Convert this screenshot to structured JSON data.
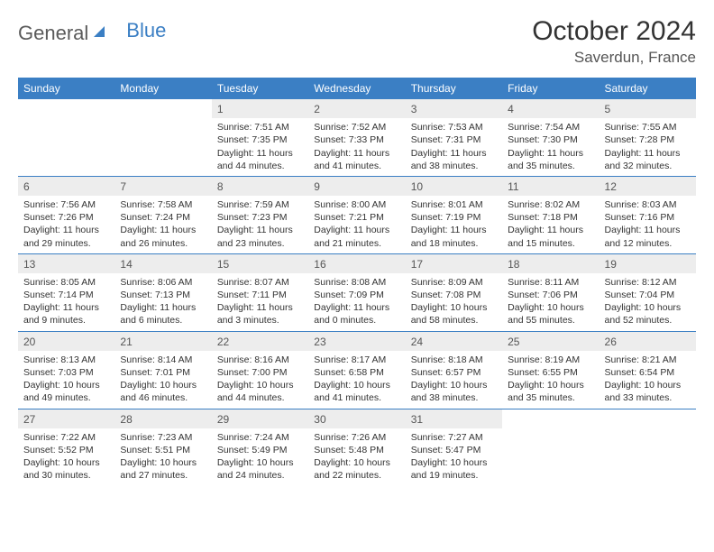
{
  "logo": {
    "text1": "General",
    "text2": "Blue"
  },
  "title": "October 2024",
  "location": "Saverdun, France",
  "colors": {
    "header_bg": "#3b7fc4",
    "header_text": "#ffffff",
    "daynum_bg": "#ededed",
    "border": "#3b7fc4",
    "text": "#333333",
    "logo_gray": "#5a5a5a"
  },
  "weekdays": [
    "Sunday",
    "Monday",
    "Tuesday",
    "Wednesday",
    "Thursday",
    "Friday",
    "Saturday"
  ],
  "weeks": [
    [
      null,
      null,
      {
        "n": "1",
        "sr": "Sunrise: 7:51 AM",
        "ss": "Sunset: 7:35 PM",
        "dl": "Daylight: 11 hours and 44 minutes."
      },
      {
        "n": "2",
        "sr": "Sunrise: 7:52 AM",
        "ss": "Sunset: 7:33 PM",
        "dl": "Daylight: 11 hours and 41 minutes."
      },
      {
        "n": "3",
        "sr": "Sunrise: 7:53 AM",
        "ss": "Sunset: 7:31 PM",
        "dl": "Daylight: 11 hours and 38 minutes."
      },
      {
        "n": "4",
        "sr": "Sunrise: 7:54 AM",
        "ss": "Sunset: 7:30 PM",
        "dl": "Daylight: 11 hours and 35 minutes."
      },
      {
        "n": "5",
        "sr": "Sunrise: 7:55 AM",
        "ss": "Sunset: 7:28 PM",
        "dl": "Daylight: 11 hours and 32 minutes."
      }
    ],
    [
      {
        "n": "6",
        "sr": "Sunrise: 7:56 AM",
        "ss": "Sunset: 7:26 PM",
        "dl": "Daylight: 11 hours and 29 minutes."
      },
      {
        "n": "7",
        "sr": "Sunrise: 7:58 AM",
        "ss": "Sunset: 7:24 PM",
        "dl": "Daylight: 11 hours and 26 minutes."
      },
      {
        "n": "8",
        "sr": "Sunrise: 7:59 AM",
        "ss": "Sunset: 7:23 PM",
        "dl": "Daylight: 11 hours and 23 minutes."
      },
      {
        "n": "9",
        "sr": "Sunrise: 8:00 AM",
        "ss": "Sunset: 7:21 PM",
        "dl": "Daylight: 11 hours and 21 minutes."
      },
      {
        "n": "10",
        "sr": "Sunrise: 8:01 AM",
        "ss": "Sunset: 7:19 PM",
        "dl": "Daylight: 11 hours and 18 minutes."
      },
      {
        "n": "11",
        "sr": "Sunrise: 8:02 AM",
        "ss": "Sunset: 7:18 PM",
        "dl": "Daylight: 11 hours and 15 minutes."
      },
      {
        "n": "12",
        "sr": "Sunrise: 8:03 AM",
        "ss": "Sunset: 7:16 PM",
        "dl": "Daylight: 11 hours and 12 minutes."
      }
    ],
    [
      {
        "n": "13",
        "sr": "Sunrise: 8:05 AM",
        "ss": "Sunset: 7:14 PM",
        "dl": "Daylight: 11 hours and 9 minutes."
      },
      {
        "n": "14",
        "sr": "Sunrise: 8:06 AM",
        "ss": "Sunset: 7:13 PM",
        "dl": "Daylight: 11 hours and 6 minutes."
      },
      {
        "n": "15",
        "sr": "Sunrise: 8:07 AM",
        "ss": "Sunset: 7:11 PM",
        "dl": "Daylight: 11 hours and 3 minutes."
      },
      {
        "n": "16",
        "sr": "Sunrise: 8:08 AM",
        "ss": "Sunset: 7:09 PM",
        "dl": "Daylight: 11 hours and 0 minutes."
      },
      {
        "n": "17",
        "sr": "Sunrise: 8:09 AM",
        "ss": "Sunset: 7:08 PM",
        "dl": "Daylight: 10 hours and 58 minutes."
      },
      {
        "n": "18",
        "sr": "Sunrise: 8:11 AM",
        "ss": "Sunset: 7:06 PM",
        "dl": "Daylight: 10 hours and 55 minutes."
      },
      {
        "n": "19",
        "sr": "Sunrise: 8:12 AM",
        "ss": "Sunset: 7:04 PM",
        "dl": "Daylight: 10 hours and 52 minutes."
      }
    ],
    [
      {
        "n": "20",
        "sr": "Sunrise: 8:13 AM",
        "ss": "Sunset: 7:03 PM",
        "dl": "Daylight: 10 hours and 49 minutes."
      },
      {
        "n": "21",
        "sr": "Sunrise: 8:14 AM",
        "ss": "Sunset: 7:01 PM",
        "dl": "Daylight: 10 hours and 46 minutes."
      },
      {
        "n": "22",
        "sr": "Sunrise: 8:16 AM",
        "ss": "Sunset: 7:00 PM",
        "dl": "Daylight: 10 hours and 44 minutes."
      },
      {
        "n": "23",
        "sr": "Sunrise: 8:17 AM",
        "ss": "Sunset: 6:58 PM",
        "dl": "Daylight: 10 hours and 41 minutes."
      },
      {
        "n": "24",
        "sr": "Sunrise: 8:18 AM",
        "ss": "Sunset: 6:57 PM",
        "dl": "Daylight: 10 hours and 38 minutes."
      },
      {
        "n": "25",
        "sr": "Sunrise: 8:19 AM",
        "ss": "Sunset: 6:55 PM",
        "dl": "Daylight: 10 hours and 35 minutes."
      },
      {
        "n": "26",
        "sr": "Sunrise: 8:21 AM",
        "ss": "Sunset: 6:54 PM",
        "dl": "Daylight: 10 hours and 33 minutes."
      }
    ],
    [
      {
        "n": "27",
        "sr": "Sunrise: 7:22 AM",
        "ss": "Sunset: 5:52 PM",
        "dl": "Daylight: 10 hours and 30 minutes."
      },
      {
        "n": "28",
        "sr": "Sunrise: 7:23 AM",
        "ss": "Sunset: 5:51 PM",
        "dl": "Daylight: 10 hours and 27 minutes."
      },
      {
        "n": "29",
        "sr": "Sunrise: 7:24 AM",
        "ss": "Sunset: 5:49 PM",
        "dl": "Daylight: 10 hours and 24 minutes."
      },
      {
        "n": "30",
        "sr": "Sunrise: 7:26 AM",
        "ss": "Sunset: 5:48 PM",
        "dl": "Daylight: 10 hours and 22 minutes."
      },
      {
        "n": "31",
        "sr": "Sunrise: 7:27 AM",
        "ss": "Sunset: 5:47 PM",
        "dl": "Daylight: 10 hours and 19 minutes."
      },
      null,
      null
    ]
  ]
}
